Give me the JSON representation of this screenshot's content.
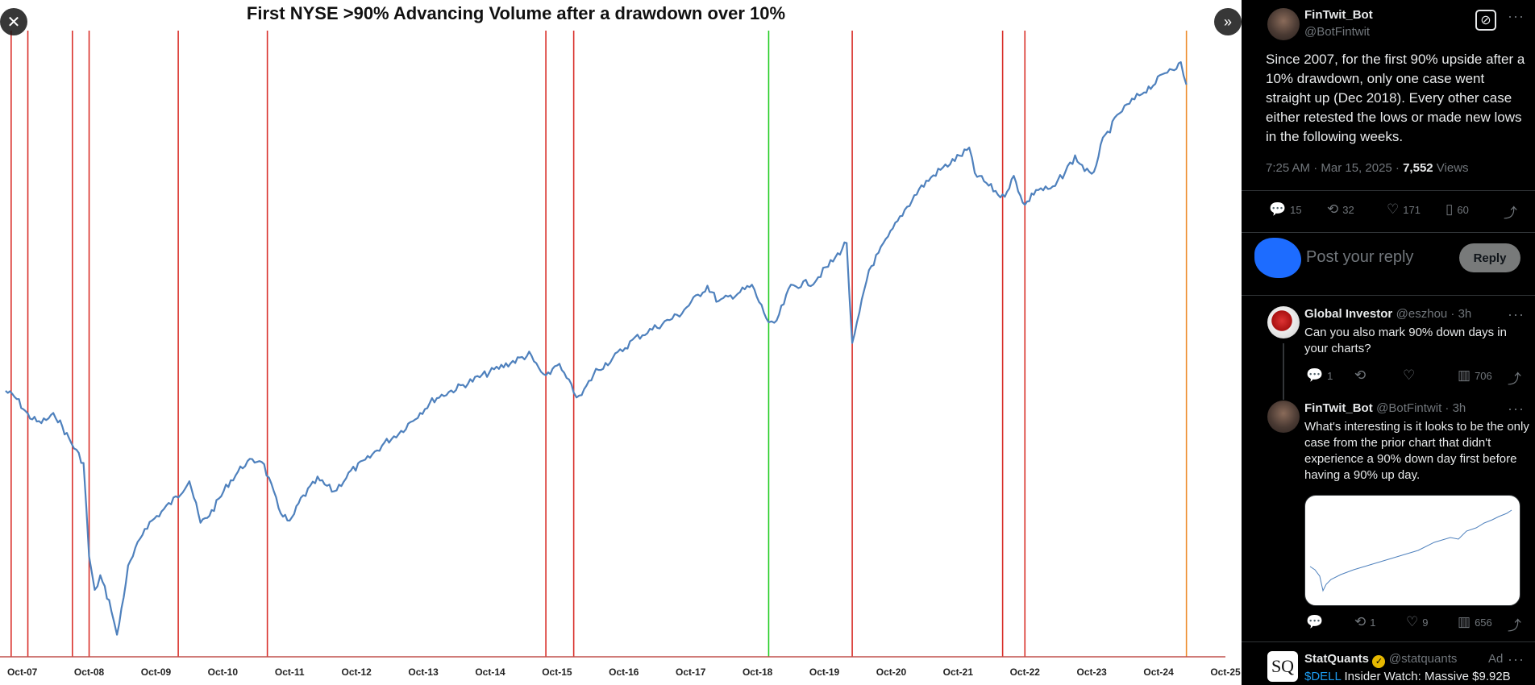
{
  "viewer": {
    "close_icon": "close-icon",
    "expand_icon": "chevron-double-right-icon"
  },
  "chart_data": {
    "type": "line",
    "title": "First NYSE >90% Advancing Volume after a drawdown over 10%",
    "x_tick_labels": [
      "Oct-07",
      "Oct-08",
      "Oct-09",
      "Oct-10",
      "Oct-11",
      "Oct-12",
      "Oct-13",
      "Oct-14",
      "Oct-15",
      "Oct-16",
      "Oct-17",
      "Oct-18",
      "Oct-19",
      "Oct-20",
      "Oct-21",
      "Oct-22",
      "Oct-23",
      "Oct-24",
      "Oct-25"
    ],
    "xlim": [
      "2007-06",
      "2025-10"
    ],
    "series": [
      {
        "color": "#4f81bd",
        "points": [
          [
            "2007-07",
            0.66
          ],
          [
            "2007-09",
            0.64
          ],
          [
            "2007-11",
            0.6
          ],
          [
            "2008-01",
            0.58
          ],
          [
            "2008-04",
            0.6
          ],
          [
            "2008-06",
            0.55
          ],
          [
            "2008-09",
            0.48
          ],
          [
            "2008-10",
            0.25
          ],
          [
            "2008-11",
            0.16
          ],
          [
            "2008-12",
            0.2
          ],
          [
            "2009-02",
            0.12
          ],
          [
            "2009-03",
            0.05
          ],
          [
            "2009-05",
            0.22
          ],
          [
            "2009-08",
            0.32
          ],
          [
            "2009-11",
            0.36
          ],
          [
            "2010-02",
            0.4
          ],
          [
            "2010-04",
            0.44
          ],
          [
            "2010-06",
            0.33
          ],
          [
            "2010-08",
            0.36
          ],
          [
            "2010-11",
            0.43
          ],
          [
            "2011-02",
            0.48
          ],
          [
            "2011-05",
            0.49
          ],
          [
            "2011-08",
            0.37
          ],
          [
            "2011-10",
            0.33
          ],
          [
            "2011-12",
            0.39
          ],
          [
            "2012-03",
            0.44
          ],
          [
            "2012-06",
            0.41
          ],
          [
            "2012-09",
            0.46
          ],
          [
            "2012-12",
            0.49
          ],
          [
            "2013-03",
            0.53
          ],
          [
            "2013-06",
            0.56
          ],
          [
            "2013-09",
            0.6
          ],
          [
            "2013-12",
            0.64
          ],
          [
            "2014-03",
            0.66
          ],
          [
            "2014-06",
            0.68
          ],
          [
            "2014-09",
            0.7
          ],
          [
            "2014-12",
            0.72
          ],
          [
            "2015-05",
            0.75
          ],
          [
            "2015-08",
            0.69
          ],
          [
            "2015-10",
            0.73
          ],
          [
            "2016-01",
            0.66
          ],
          [
            "2016-02",
            0.64
          ],
          [
            "2016-05",
            0.71
          ],
          [
            "2016-08",
            0.74
          ],
          [
            "2016-12",
            0.79
          ],
          [
            "2017-04",
            0.82
          ],
          [
            "2017-08",
            0.85
          ],
          [
            "2018-01",
            0.92
          ],
          [
            "2018-03",
            0.88
          ],
          [
            "2018-09",
            0.92
          ],
          [
            "2018-12",
            0.83
          ],
          [
            "2019-01",
            0.82
          ],
          [
            "2019-04",
            0.92
          ],
          [
            "2019-08",
            0.93
          ],
          [
            "2019-12",
            0.99
          ],
          [
            "2020-02",
            1.03
          ],
          [
            "2020-03",
            0.77
          ],
          [
            "2020-06",
            0.96
          ],
          [
            "2020-09",
            1.03
          ],
          [
            "2020-12",
            1.1
          ],
          [
            "2021-03",
            1.16
          ],
          [
            "2021-06",
            1.2
          ],
          [
            "2021-09",
            1.23
          ],
          [
            "2021-12",
            1.26
          ],
          [
            "2022-01",
            1.2
          ],
          [
            "2022-06",
            1.14
          ],
          [
            "2022-08",
            1.19
          ],
          [
            "2022-10",
            1.12
          ],
          [
            "2022-12",
            1.16
          ],
          [
            "2023-03",
            1.16
          ],
          [
            "2023-07",
            1.24
          ],
          [
            "2023-10",
            1.19
          ],
          [
            "2023-12",
            1.28
          ],
          [
            "2024-03",
            1.35
          ],
          [
            "2024-07",
            1.4
          ],
          [
            "2024-09",
            1.42
          ],
          [
            "2024-12",
            1.46
          ],
          [
            "2025-02",
            1.47
          ],
          [
            "2025-03",
            1.42
          ]
        ]
      }
    ],
    "ylim": [
      0,
      1.55
    ],
    "vertical_markers": [
      {
        "date": "2007-08",
        "color": "#d9302a"
      },
      {
        "date": "2007-11",
        "color": "#d9302a"
      },
      {
        "date": "2008-07",
        "color": "#d9302a"
      },
      {
        "date": "2008-10",
        "color": "#d9302a"
      },
      {
        "date": "2010-02",
        "color": "#d9302a"
      },
      {
        "date": "2011-06",
        "color": "#d9302a"
      },
      {
        "date": "2015-08",
        "color": "#d9302a"
      },
      {
        "date": "2016-01",
        "color": "#d9302a"
      },
      {
        "date": "2018-12",
        "color": "#22cc22"
      },
      {
        "date": "2020-03",
        "color": "#d9302a"
      },
      {
        "date": "2022-06",
        "color": "#d9302a"
      },
      {
        "date": "2022-10",
        "color": "#d9302a"
      },
      {
        "date": "2025-03",
        "color": "#ed8b2a"
      }
    ],
    "grid": false,
    "legend": "none"
  },
  "tweet": {
    "author_name": "FinTwit_Bot",
    "author_handle": "@BotFintwit",
    "text": "Since 2007, for the first 90% upside after a 10% drawdown, only one case went straight up (Dec 2018). Every other case either retested the lows or made new lows in the following weeks.",
    "time": "7:25 AM · Mar 15, 2025 · ",
    "views_count": "7,552",
    "views_label": " Views",
    "replies": "15",
    "reposts": "32",
    "likes": "171",
    "bookmarks": "60"
  },
  "composer": {
    "placeholder": "Post your reply",
    "reply_label": "Reply"
  },
  "replies": [
    {
      "name": "Global Investor",
      "handle": "@eszhou · 3h",
      "text": "Can you also mark 90% down days in your charts?",
      "replies": "1",
      "reposts": "",
      "likes": "",
      "views": "706"
    },
    {
      "name": "FinTwit_Bot",
      "handle": "@BotFintwit · 3h",
      "text": "What's interesting is it looks to be the only case from the prior chart that didn't experience a 90% down day first before having a 90% up day.",
      "replies": "",
      "reposts": "1",
      "likes": "9",
      "views": "656"
    }
  ],
  "ad": {
    "avatar_text": "SQ",
    "name": "StatQuants",
    "handle": "@statquants",
    "ad_label": "Ad",
    "cashtag": "$DELL",
    "text": " Insider Watch: Massive $9.92B"
  }
}
